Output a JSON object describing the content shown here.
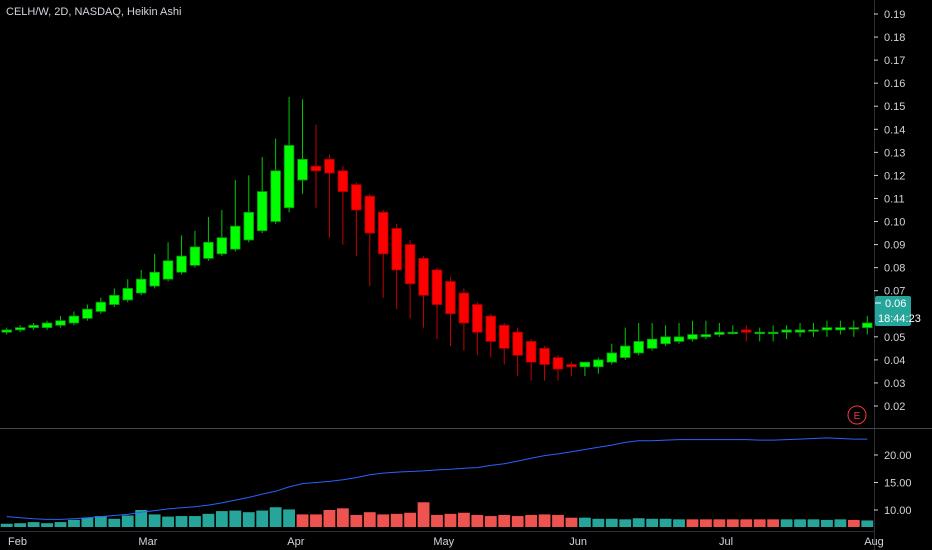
{
  "header": {
    "title": "CELH/W, 2D, NASDAQ, Heikin Ashi"
  },
  "price_badge": {
    "value": "0.06",
    "countdown": "18:44:23",
    "color": "#26a69a"
  },
  "earnings_marker": {
    "label": "E",
    "color": "#f23645"
  },
  "colors": {
    "up_body": "#00ff00",
    "up_wick": "#00c800",
    "down_body": "#ff0000",
    "down_wick": "#c80000",
    "up_body_dark": "#0a8f0a",
    "down_body_dark": "#a30000",
    "volume_up": "#26a69a",
    "volume_down": "#ef5350",
    "ma_line": "#2962ff"
  },
  "chart_data": [
    {
      "type": "candlestick",
      "style": "Heikin Ashi",
      "ylim": [
        0.01,
        0.195
      ],
      "yticks": [
        0.02,
        0.03,
        0.04,
        0.05,
        0.06,
        0.07,
        0.08,
        0.09,
        0.1,
        0.11,
        0.12,
        0.13,
        0.14,
        0.15,
        0.16,
        0.17,
        0.18,
        0.19
      ],
      "yticklabels": [
        "0.02",
        "0.03",
        "0.04",
        "0.05",
        "0.06",
        "0.07",
        "0.08",
        "0.09",
        "0.10",
        "0.11",
        "0.12",
        "0.13",
        "0.14",
        "0.15",
        "0.16",
        "0.17",
        "0.18",
        "0.19"
      ],
      "xticklabels": [
        "Feb",
        "Mar",
        "Apr",
        "May",
        "Jun",
        "Jul",
        "Aug"
      ],
      "x_range_bars": [
        -0.5,
        64.5
      ],
      "xtick_bar_index": [
        0.5,
        10.5,
        21.5,
        32.5,
        42.5,
        53.5,
        64.5
      ],
      "ohlc": [
        [
          0.052,
          0.054,
          0.051,
          0.053
        ],
        [
          0.053,
          0.055,
          0.052,
          0.054
        ],
        [
          0.054,
          0.056,
          0.053,
          0.055
        ],
        [
          0.054,
          0.057,
          0.053,
          0.056
        ],
        [
          0.055,
          0.059,
          0.054,
          0.057
        ],
        [
          0.056,
          0.061,
          0.055,
          0.059
        ],
        [
          0.058,
          0.064,
          0.057,
          0.062
        ],
        [
          0.061,
          0.067,
          0.06,
          0.065
        ],
        [
          0.064,
          0.071,
          0.063,
          0.068
        ],
        [
          0.066,
          0.075,
          0.065,
          0.071
        ],
        [
          0.069,
          0.079,
          0.068,
          0.075
        ],
        [
          0.072,
          0.086,
          0.071,
          0.078
        ],
        [
          0.075,
          0.091,
          0.074,
          0.083
        ],
        [
          0.078,
          0.094,
          0.077,
          0.085
        ],
        [
          0.081,
          0.096,
          0.08,
          0.089
        ],
        [
          0.084,
          0.102,
          0.083,
          0.091
        ],
        [
          0.086,
          0.105,
          0.085,
          0.093
        ],
        [
          0.088,
          0.118,
          0.087,
          0.098
        ],
        [
          0.092,
          0.12,
          0.091,
          0.104
        ],
        [
          0.096,
          0.128,
          0.095,
          0.113
        ],
        [
          0.1,
          0.136,
          0.099,
          0.122
        ],
        [
          0.106,
          0.154,
          0.104,
          0.133
        ],
        [
          0.118,
          0.153,
          0.112,
          0.127
        ],
        [
          0.124,
          0.142,
          0.106,
          0.122
        ],
        [
          0.127,
          0.129,
          0.093,
          0.121
        ],
        [
          0.122,
          0.124,
          0.09,
          0.113
        ],
        [
          0.116,
          0.117,
          0.085,
          0.105
        ],
        [
          0.111,
          0.112,
          0.072,
          0.095
        ],
        [
          0.104,
          0.105,
          0.067,
          0.086
        ],
        [
          0.097,
          0.099,
          0.062,
          0.079
        ],
        [
          0.09,
          0.092,
          0.058,
          0.073
        ],
        [
          0.084,
          0.085,
          0.054,
          0.068
        ],
        [
          0.079,
          0.08,
          0.049,
          0.064
        ],
        [
          0.074,
          0.076,
          0.046,
          0.06
        ],
        [
          0.069,
          0.071,
          0.044,
          0.056
        ],
        [
          0.064,
          0.065,
          0.042,
          0.052
        ],
        [
          0.059,
          0.06,
          0.041,
          0.048
        ],
        [
          0.055,
          0.056,
          0.038,
          0.045
        ],
        [
          0.052,
          0.054,
          0.033,
          0.042
        ],
        [
          0.048,
          0.049,
          0.031,
          0.039
        ],
        [
          0.045,
          0.046,
          0.031,
          0.038
        ],
        [
          0.041,
          0.042,
          0.031,
          0.036
        ],
        [
          0.038,
          0.039,
          0.033,
          0.037
        ],
        [
          0.037,
          0.038,
          0.033,
          0.039
        ],
        [
          0.037,
          0.041,
          0.034,
          0.04
        ],
        [
          0.039,
          0.047,
          0.038,
          0.043
        ],
        [
          0.041,
          0.054,
          0.04,
          0.046
        ],
        [
          0.043,
          0.056,
          0.042,
          0.048
        ],
        [
          0.045,
          0.056,
          0.044,
          0.049
        ],
        [
          0.047,
          0.055,
          0.046,
          0.05
        ],
        [
          0.048,
          0.056,
          0.047,
          0.05
        ],
        [
          0.049,
          0.057,
          0.048,
          0.051
        ],
        [
          0.05,
          0.057,
          0.049,
          0.051
        ],
        [
          0.051,
          0.056,
          0.05,
          0.052
        ],
        [
          0.052,
          0.055,
          0.051,
          0.052
        ],
        [
          0.053,
          0.055,
          0.048,
          0.052
        ],
        [
          0.052,
          0.054,
          0.048,
          0.052
        ],
        [
          0.052,
          0.055,
          0.048,
          0.052
        ],
        [
          0.052,
          0.055,
          0.049,
          0.053
        ],
        [
          0.052,
          0.056,
          0.05,
          0.053
        ],
        [
          0.053,
          0.056,
          0.05,
          0.053
        ],
        [
          0.053,
          0.057,
          0.05,
          0.054
        ],
        [
          0.053,
          0.057,
          0.051,
          0.054
        ],
        [
          0.054,
          0.057,
          0.05,
          0.054
        ],
        [
          0.054,
          0.059,
          0.051,
          0.056
        ]
      ]
    },
    {
      "type": "bar+line",
      "name": "volume",
      "ylim": [
        6.0,
        27.0
      ],
      "yticks": [
        10.0,
        15.0,
        20.0
      ],
      "yticklabels": [
        "10.00",
        "15.00",
        "20.00"
      ],
      "volume": [
        7.5,
        7.6,
        7.8,
        7.6,
        7.8,
        8.2,
        8.6,
        8.9,
        8.4,
        9.0,
        10.0,
        9.2,
        8.8,
        8.9,
        8.9,
        9.3,
        9.8,
        9.9,
        9.6,
        9.9,
        10.5,
        10.1,
        9.2,
        9.2,
        10.0,
        10.3,
        9.1,
        9.6,
        9.2,
        9.3,
        9.5,
        11.4,
        9.1,
        9.3,
        9.5,
        9.1,
        8.9,
        9.1,
        8.9,
        9.1,
        9.2,
        9.1,
        8.6,
        8.6,
        8.4,
        8.4,
        8.3,
        8.5,
        8.4,
        8.4,
        8.3,
        8.3,
        8.3,
        8.3,
        8.3,
        8.3,
        8.3,
        8.3,
        8.3,
        8.3,
        8.3,
        8.2,
        8.3,
        8.2,
        8.1
      ],
      "volume_up": [
        true,
        true,
        true,
        true,
        true,
        true,
        true,
        true,
        true,
        true,
        true,
        true,
        true,
        true,
        true,
        true,
        true,
        true,
        true,
        true,
        true,
        true,
        false,
        false,
        false,
        false,
        false,
        false,
        false,
        false,
        false,
        false,
        false,
        false,
        false,
        false,
        false,
        false,
        false,
        false,
        false,
        false,
        false,
        true,
        true,
        true,
        true,
        true,
        true,
        true,
        true,
        false,
        false,
        false,
        false,
        false,
        false,
        false,
        true,
        true,
        true,
        true,
        true,
        false,
        true
      ],
      "ma": [
        8.8,
        8.6,
        8.4,
        8.3,
        8.3,
        8.4,
        8.6,
        8.8,
        9.0,
        9.2,
        9.6,
        9.9,
        10.2,
        10.4,
        10.6,
        10.9,
        11.3,
        11.8,
        12.3,
        12.9,
        13.4,
        14.2,
        14.8,
        15.0,
        15.2,
        15.5,
        15.9,
        16.4,
        16.7,
        16.9,
        17.0,
        17.1,
        17.3,
        17.4,
        17.6,
        17.7,
        18.1,
        18.4,
        18.9,
        19.4,
        19.9,
        20.2,
        20.6,
        21.0,
        21.4,
        21.8,
        22.3,
        22.6,
        22.6,
        22.7,
        22.8,
        22.8,
        22.8,
        22.8,
        22.8,
        22.8,
        22.7,
        22.7,
        22.8,
        22.9,
        23.0,
        23.1,
        23.0,
        22.9,
        22.9
      ]
    }
  ]
}
